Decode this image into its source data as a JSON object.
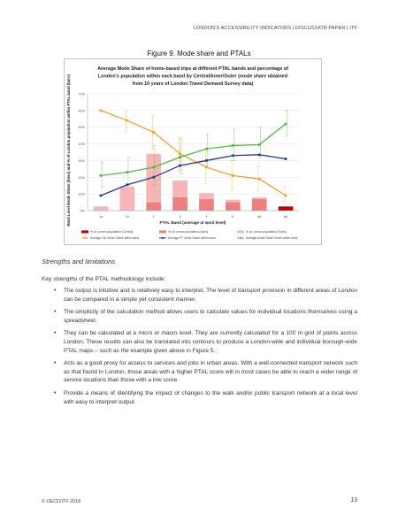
{
  "header": {
    "running_title": "LONDON'S ACCESSIBILITY INDICATORS | DISCUSSION PAPER | ITF"
  },
  "figure": {
    "caption": "Figure 9.  Mode share and PTALs"
  },
  "chart_data": {
    "type": "bar",
    "title_lines": [
      "Average Mode Share of home-based trips at different PTAL bands and percentage of",
      "London's population within each band by Central/Inner/Outer (mode share obtained",
      "from 10 years of London Travel Demand Survey data)"
    ],
    "xlabel": "PTAL Band (average at ward level)",
    "ylabel": "Ward Level Mode Share (lines) and % of London population within PTAL band (bars)",
    "categories": [
      "1a",
      "1b",
      "2",
      "3",
      "4",
      "5",
      "6a",
      "6b"
    ],
    "ylim": [
      0,
      70
    ],
    "yticks": [
      "0%",
      "10%",
      "20%",
      "30%",
      "40%",
      "50%",
      "60%",
      "70%"
    ],
    "bar_series": [
      {
        "name": "% of London population (Central)",
        "color": "#c00000",
        "values": [
          0,
          0,
          0,
          0,
          0,
          0,
          0,
          2.5
        ]
      },
      {
        "name": "% of London population (Inner)",
        "color": "#f08080",
        "values": [
          0,
          0,
          5,
          8,
          7,
          5,
          7,
          0
        ]
      },
      {
        "name": "% of London population (Outer)",
        "color": "#f7b6b6",
        "values": [
          2.5,
          14.5,
          29,
          10,
          3.5,
          1.5,
          1,
          0
        ]
      }
    ],
    "line_series": [
      {
        "name": "Average Car Mode Share within band",
        "color": "#f0a030",
        "values": [
          60,
          54,
          47,
          34,
          26,
          21,
          19,
          9
        ],
        "err": [
          [
            60,
            60
          ],
          [
            47,
            60
          ],
          [
            37,
            57
          ],
          [
            24,
            44
          ],
          [
            16,
            35
          ],
          [
            13,
            30
          ],
          [
            12,
            27
          ],
          [
            6,
            14
          ]
        ]
      },
      {
        "name": "Average PT Mode Share within band",
        "color": "#1f3a9a",
        "values": [
          9,
          15.5,
          20,
          27,
          30,
          33,
          33.5,
          31
        ]
      },
      {
        "name": "Average Active Mode Share within band",
        "color": "#50b848",
        "values": [
          21,
          23,
          26,
          32,
          37,
          39,
          39.5,
          52
        ],
        "err": [
          [
            14,
            29
          ],
          [
            15,
            32
          ],
          [
            15,
            39
          ],
          [
            22,
            43
          ],
          [
            27,
            46
          ],
          [
            30,
            49
          ],
          [
            32,
            50
          ],
          [
            45,
            60
          ]
        ]
      }
    ],
    "grid": true,
    "legend": "bottom"
  },
  "section": {
    "title": "Strengths and limitations",
    "intro": "Key strengths of the PTAL methodology include:",
    "bullets": [
      "The output is intuitive and is relatively easy to interpret. The level of transport provision in different areas of London can be compared in a simple yet consistent manner.",
      "The simplicity of the calculation method allows users to calculate values for individual locations themselves using a spreadsheet.",
      "They can be calculated at a micro or macro level. They are currently calculated for a 100 m grid of points across London. These results can also be translated into contours to produce a London-wide and individual borough-wide PTAL maps – such as the example given above in Figure 5.",
      "Acts as a good proxy for access to services and jobs in urban areas. With a well-connected transport network such as that found in London, those areas with a higher PTAL score will in most cases be able to reach a wider range of service locations than those with a low score.",
      "Provide a means of identifying the impact of changes to the walk and/or public transport network at a local level with easy to interpret output."
    ]
  },
  "footer": {
    "copyright": "© OECD/ITF 2018",
    "page_number": "13"
  }
}
